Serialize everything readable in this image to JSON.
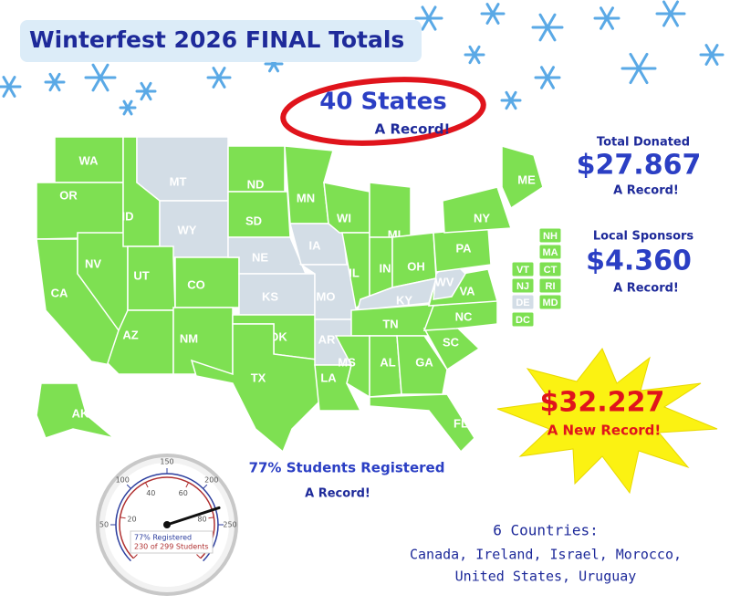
{
  "header": {
    "title": "Winterfest 2026 FINAL Totals"
  },
  "states_callout": {
    "count_text": "40 States",
    "note": "A Record!"
  },
  "map": {
    "covered_color": "#7ee052",
    "uncovered_color": "#d3dde6",
    "states": [
      {
        "label": "WA",
        "covered": true
      },
      {
        "label": "OR",
        "covered": true
      },
      {
        "label": "CA",
        "covered": true
      },
      {
        "label": "NV",
        "covered": true
      },
      {
        "label": "ID",
        "covered": true
      },
      {
        "label": "MT",
        "covered": false
      },
      {
        "label": "WY",
        "covered": false
      },
      {
        "label": "UT",
        "covered": true
      },
      {
        "label": "CO",
        "covered": true
      },
      {
        "label": "AZ",
        "covered": true
      },
      {
        "label": "NM",
        "covered": true
      },
      {
        "label": "ND",
        "covered": true
      },
      {
        "label": "SD",
        "covered": true
      },
      {
        "label": "NE",
        "covered": false
      },
      {
        "label": "KS",
        "covered": false
      },
      {
        "label": "OK",
        "covered": true
      },
      {
        "label": "TX",
        "covered": true
      },
      {
        "label": "MN",
        "covered": true
      },
      {
        "label": "IA",
        "covered": false
      },
      {
        "label": "MO",
        "covered": false
      },
      {
        "label": "AR",
        "covered": false
      },
      {
        "label": "LA",
        "covered": true
      },
      {
        "label": "WI",
        "covered": true
      },
      {
        "label": "IL",
        "covered": true
      },
      {
        "label": "MI",
        "covered": true
      },
      {
        "label": "IN",
        "covered": true
      },
      {
        "label": "OH",
        "covered": true
      },
      {
        "label": "KY",
        "covered": false
      },
      {
        "label": "TN",
        "covered": true
      },
      {
        "label": "MS",
        "covered": true
      },
      {
        "label": "AL",
        "covered": true
      },
      {
        "label": "GA",
        "covered": true
      },
      {
        "label": "FL",
        "covered": true
      },
      {
        "label": "SC",
        "covered": true
      },
      {
        "label": "NC",
        "covered": true
      },
      {
        "label": "VA",
        "covered": true
      },
      {
        "label": "WV",
        "covered": false
      },
      {
        "label": "PA",
        "covered": true
      },
      {
        "label": "NY",
        "covered": true
      },
      {
        "label": "ME",
        "covered": true
      },
      {
        "label": "AK",
        "covered": true
      },
      {
        "label": "NH",
        "covered": true
      },
      {
        "label": "MA",
        "covered": true
      },
      {
        "label": "VT",
        "covered": true
      },
      {
        "label": "CT",
        "covered": true
      },
      {
        "label": "NJ",
        "covered": true
      },
      {
        "label": "RI",
        "covered": true
      },
      {
        "label": "DE",
        "covered": false
      },
      {
        "label": "MD",
        "covered": true
      },
      {
        "label": "DC",
        "covered": true
      }
    ]
  },
  "total_donated": {
    "label": "Total Donated",
    "amount": "$27.867",
    "note": "A Record!"
  },
  "local_sponsors": {
    "label": "Local Sponsors",
    "amount": "$4.360",
    "note": "A Record!"
  },
  "grand_total": {
    "amount": "$32.227",
    "note": "A New Record!"
  },
  "students": {
    "text": "77% Students Registered",
    "note": "A Record!"
  },
  "gauge": {
    "outer_range": [
      0,
      300
    ],
    "outer_ticks": [
      50,
      100,
      150,
      200,
      250
    ],
    "inner_range": [
      0,
      100
    ],
    "inner_ticks": [
      0,
      20,
      40,
      60,
      80,
      100
    ],
    "needle_value": 230,
    "readout": [
      "77% Registered",
      "230 of 299 Students"
    ]
  },
  "countries": {
    "heading": "6 Countries:",
    "lines": [
      "Canada, Ireland, Israel, Morocco,",
      "United States, Uruguay"
    ]
  }
}
